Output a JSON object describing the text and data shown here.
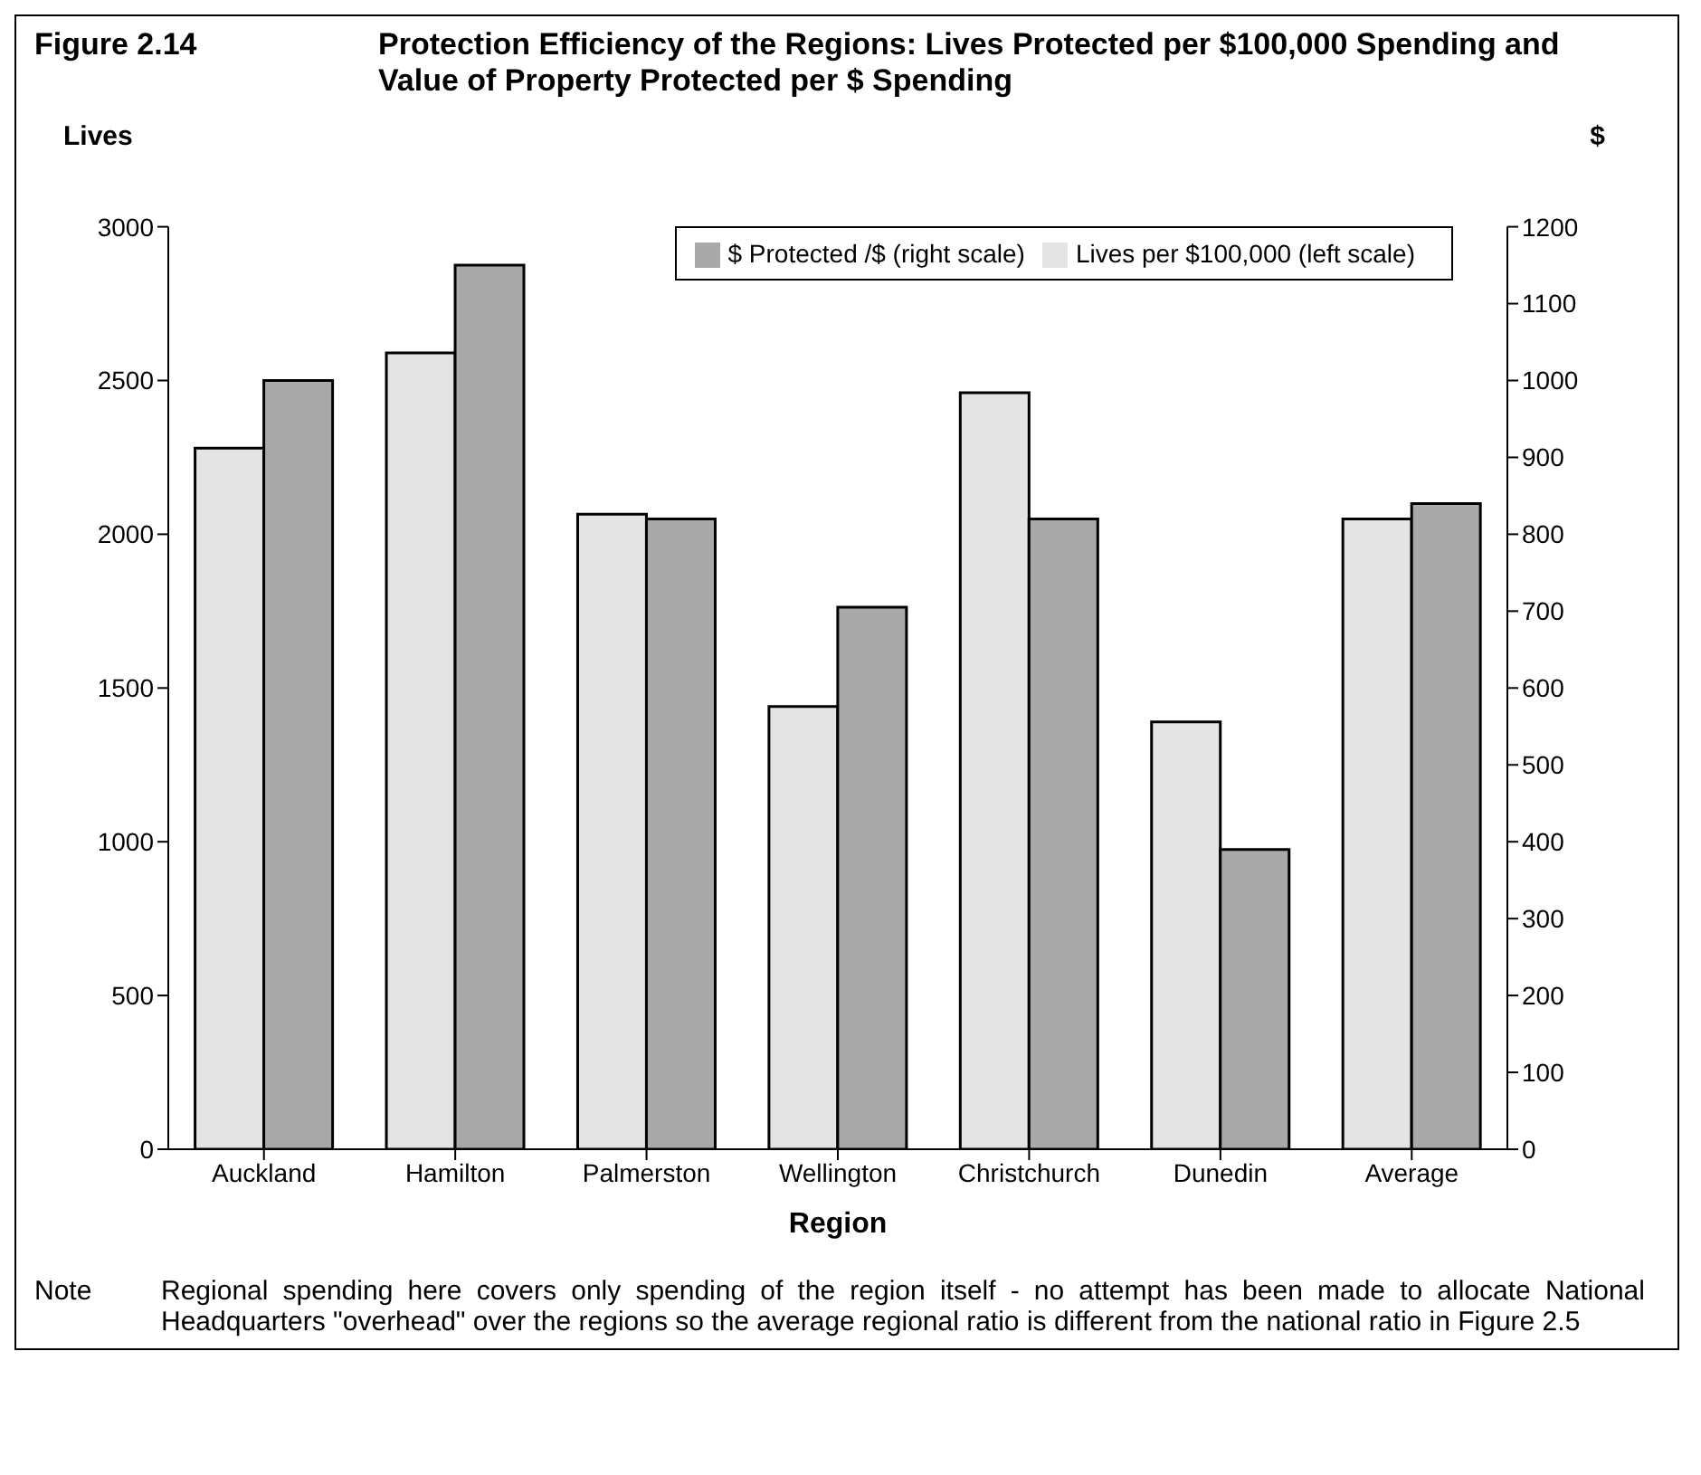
{
  "chart_data": {
    "type": "bar",
    "title": "Protection  Efficiency of the Regions:  Lives Protected per $100,000 Spending and Value of Property Protected per $ Spending",
    "xlabel": "Region",
    "ylabel": "Lives",
    "y2label": "$",
    "annotations": [
      "Figure 2.14",
      "Note",
      "Regional spending here covers only spending of the region itself - no attempt has been made to allocate National Headquarters \"overhead\" over the regions so the average regional ratio is different from the national ratio in Figure 2.5"
    ],
    "categories": [
      "Auckland",
      "Hamilton",
      "Palmerston",
      "Wellington",
      "Christchurch",
      "Dunedin",
      "Average"
    ],
    "series": [
      {
        "name": "Lives per $100,000 (left scale)",
        "color": "#e4e4e4",
        "values": [
          2280,
          2590,
          2065,
          1440,
          2460,
          1390,
          2050
        ]
      },
      {
        "name": "$ Protected /$ (right scale)",
        "color": "#a9a9a9",
        "axis": "y2",
        "values": [
          1000,
          1150,
          820,
          705,
          820,
          390,
          840
        ]
      }
    ],
    "ylim": [
      0,
      3000
    ],
    "yticks": [
      0,
      500,
      1000,
      1500,
      2000,
      2500,
      3000
    ],
    "y2lim": [
      0,
      1200
    ],
    "y2ticks": [
      0,
      100,
      200,
      300,
      400,
      500,
      600,
      700,
      800,
      900,
      1000,
      1100,
      1200
    ],
    "grid": false,
    "legend": "top right"
  }
}
